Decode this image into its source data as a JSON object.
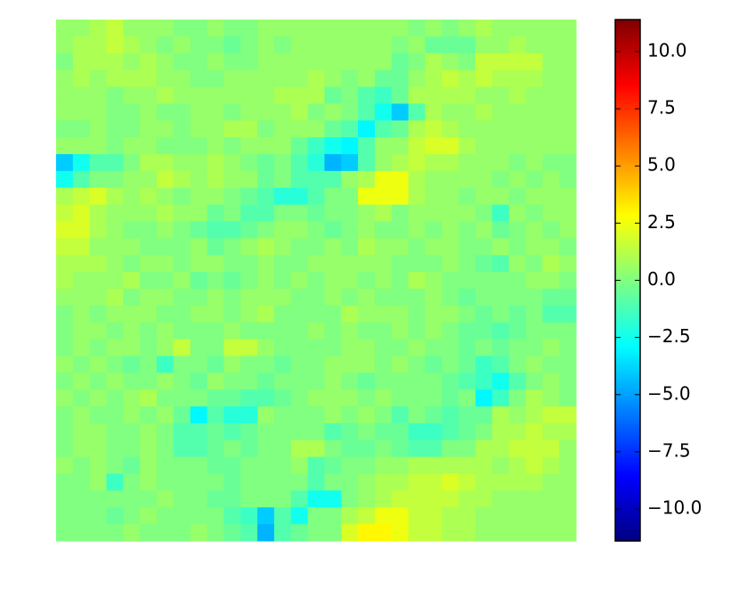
{
  "chart_data": {
    "type": "heatmap",
    "colormap": "jet",
    "zlim": [
      -11.4,
      11.4
    ],
    "zticks": [
      {
        "value": -10,
        "label": "−10.0"
      },
      {
        "value": -7.5,
        "label": "−7.5"
      },
      {
        "value": -5,
        "label": "−5.0"
      },
      {
        "value": -2.5,
        "label": "−2.5"
      },
      {
        "value": 0,
        "label": "0.0"
      },
      {
        "value": 2.5,
        "label": "2.5"
      },
      {
        "value": 5,
        "label": "5.0"
      },
      {
        "value": 7.5,
        "label": "7.5"
      },
      {
        "value": 10,
        "label": "10.0"
      }
    ],
    "z": [
      [
        0.5,
        0.5,
        1,
        1.5,
        0.5,
        0.5,
        0.5,
        0,
        0,
        0.5,
        0,
        0,
        0.5,
        0.5,
        0.5,
        0.5,
        0.5,
        0.5,
        0.5,
        0.5,
        0.5,
        0,
        0.5,
        0,
        0.5,
        1,
        0.5,
        0.5,
        0.5,
        0.5,
        0.5
      ],
      [
        0.5,
        1,
        1,
        1.5,
        1,
        0.5,
        0,
        0.5,
        0,
        0,
        -0.5,
        0,
        0.5,
        0,
        0.5,
        0.5,
        0.5,
        0.5,
        0.5,
        0.5,
        0,
        0.5,
        -0.5,
        -0.5,
        -0.5,
        0.5,
        0.5,
        1,
        0.5,
        0.5,
        0.5
      ],
      [
        0,
        1,
        1,
        1,
        0.5,
        1,
        0.5,
        0,
        0,
        0.5,
        0,
        0,
        0.5,
        0.5,
        0.5,
        0.5,
        0.5,
        0.5,
        0.5,
        0.5,
        -0.5,
        0,
        1,
        0.5,
        0,
        1.5,
        1.5,
        1.5,
        1.5,
        0.5,
        0.5
      ],
      [
        0.5,
        1,
        0.5,
        1,
        1,
        1,
        0.5,
        0.5,
        0,
        0,
        0.5,
        0.5,
        0.5,
        0.5,
        0.5,
        1,
        0.5,
        0,
        0.5,
        -0.5,
        -0.5,
        0.5,
        1,
        1.5,
        1,
        1.5,
        1,
        1,
        1,
        0.5,
        0.5
      ],
      [
        0.5,
        0.5,
        0.5,
        0,
        0.5,
        0.5,
        1,
        0.5,
        0.5,
        0.5,
        0.5,
        0.5,
        0.5,
        1,
        1,
        1,
        -0.5,
        0,
        -1,
        -1.5,
        -0.5,
        1,
        1,
        1,
        1,
        0.5,
        0.5,
        1,
        0.5,
        0.5,
        0.5
      ],
      [
        0.5,
        0.5,
        0.5,
        0,
        0,
        0.5,
        0,
        0,
        0.5,
        0.5,
        0,
        0.5,
        0.5,
        0.5,
        1,
        0,
        0.5,
        0,
        -1,
        -2.5,
        -4,
        -1,
        1,
        0.5,
        0.5,
        1,
        0.5,
        0.5,
        0.5,
        0.5,
        0.5
      ],
      [
        0,
        0,
        0.5,
        0,
        0,
        0.5,
        0.5,
        0,
        0.5,
        0.5,
        1,
        1,
        0,
        0.5,
        0.5,
        0.5,
        -0.5,
        -1,
        -3,
        -1,
        -0.5,
        1,
        1.5,
        1,
        0.5,
        0.5,
        0.5,
        0.5,
        0.5,
        0.5,
        0.5
      ],
      [
        0.5,
        0.5,
        0.5,
        0,
        0.5,
        0.5,
        0,
        0,
        0,
        0.5,
        0,
        0.5,
        0.5,
        0.5,
        -0.5,
        -1.5,
        -2.5,
        -3,
        -1,
        0.5,
        0.5,
        1.5,
        2,
        2,
        1,
        0.5,
        0.5,
        0.5,
        0.5,
        0.5,
        0.5
      ],
      [
        -4,
        -2.5,
        -1,
        -1,
        0,
        1,
        1,
        0.5,
        0.5,
        1,
        0.5,
        0,
        -0.5,
        0,
        -1,
        -2,
        -4.5,
        -4,
        -1,
        0.5,
        1,
        1.5,
        1,
        1,
        0.5,
        0.5,
        0.5,
        0,
        0.5,
        0,
        0
      ],
      [
        -2.5,
        -1,
        0,
        0,
        0.5,
        0.5,
        1.5,
        1,
        0.5,
        1,
        0.5,
        0.5,
        -0.5,
        0,
        -1,
        -1,
        -1,
        0.5,
        1,
        2.5,
        2.5,
        1,
        0.5,
        0.5,
        0.5,
        0.5,
        0,
        0.5,
        0,
        0.5,
        0
      ],
      [
        1,
        1.5,
        2,
        1,
        0.5,
        1,
        0.5,
        0,
        0.5,
        0.5,
        0,
        -0.5,
        -1,
        -2,
        -2,
        -1,
        0,
        0,
        2.5,
        2.5,
        2.5,
        1,
        0.5,
        0.5,
        0,
        0.5,
        0.5,
        0,
        0.5,
        0.5,
        0.5
      ],
      [
        1.5,
        2,
        1,
        0.5,
        0.5,
        0.5,
        1,
        0.5,
        0.5,
        -0.5,
        0,
        -1,
        -1,
        0,
        0,
        -0.5,
        0,
        0,
        0.5,
        1,
        0,
        0.5,
        0.5,
        0.5,
        0.5,
        0,
        -1.5,
        0.5,
        0,
        0.5,
        0.5
      ],
      [
        2,
        2,
        1,
        0.5,
        0,
        0,
        0.5,
        0,
        -0.5,
        -1,
        -1,
        -0.5,
        0,
        0.5,
        0.5,
        0,
        -0.5,
        0,
        0.5,
        0,
        0,
        0.5,
        0,
        0.5,
        0,
        0.5,
        -0.5,
        0,
        0.5,
        0,
        0.5
      ],
      [
        1.5,
        1.5,
        0.5,
        0.5,
        0.5,
        0,
        0,
        0,
        0.5,
        -0.5,
        0,
        0.5,
        1,
        0.5,
        0,
        0,
        0.5,
        0,
        1,
        0.5,
        0.5,
        0,
        0.5,
        0.5,
        0,
        0,
        0.5,
        0,
        0.5,
        0.5,
        0
      ],
      [
        1,
        1,
        1,
        0.5,
        0,
        0.5,
        0.5,
        0,
        0.5,
        0.5,
        0,
        0,
        0.5,
        0,
        0,
        0.5,
        0.5,
        0.5,
        0.5,
        0.5,
        0,
        0,
        0,
        0.5,
        0,
        -0.5,
        -1,
        0.5,
        0,
        1,
        0.5
      ],
      [
        1,
        0.5,
        0.5,
        0.5,
        1,
        0,
        0,
        0.5,
        -0.5,
        0,
        -0.5,
        0,
        0.5,
        0,
        0.5,
        0,
        0.5,
        0.5,
        0,
        0.5,
        0,
        1,
        0.5,
        0,
        0,
        0,
        0,
        0,
        0.5,
        0.5,
        0
      ],
      [
        0.5,
        0.5,
        0.5,
        1,
        0,
        0.5,
        0.5,
        0,
        0,
        0.5,
        0,
        0.5,
        0.5,
        0.5,
        0,
        0,
        0.5,
        0,
        0.5,
        0,
        0,
        0,
        0.5,
        0,
        -0.5,
        0,
        0,
        0,
        0,
        -0.5,
        -0.5
      ],
      [
        0,
        0.5,
        0,
        0.5,
        0.5,
        0.5,
        0,
        0,
        0.5,
        0.5,
        0,
        0.5,
        1,
        0,
        0,
        0,
        0,
        1,
        0.5,
        0.5,
        0.5,
        0,
        0.5,
        0.5,
        0,
        -0.5,
        0,
        -0.5,
        0,
        -1,
        -1
      ],
      [
        0,
        0.5,
        0.5,
        0,
        0.5,
        0,
        0.5,
        0,
        0,
        0,
        0.5,
        0,
        0,
        0,
        0,
        0.5,
        0,
        0.5,
        0,
        0,
        0.5,
        0,
        0.5,
        0,
        -0.5,
        -0.5,
        -1,
        -0.5,
        0,
        0,
        0
      ],
      [
        0,
        0.5,
        0,
        0.5,
        0.5,
        0,
        0.5,
        1.5,
        0,
        0,
        1.5,
        1.5,
        0.5,
        0,
        0,
        0,
        0,
        0.5,
        0.5,
        0,
        0,
        0.5,
        0,
        0,
        -0.5,
        0,
        -0.5,
        0,
        0,
        0.5,
        0
      ],
      [
        0.5,
        0,
        0.5,
        0,
        -0.5,
        0,
        -1.5,
        0,
        0,
        -0.5,
        0.5,
        0,
        0,
        -0.5,
        0,
        0,
        0.5,
        0.5,
        0.5,
        0,
        0.5,
        0,
        -0.5,
        0,
        -0.5,
        -1.5,
        -1,
        0,
        0.5,
        0,
        0
      ],
      [
        0,
        0.5,
        0,
        0.5,
        0,
        0,
        0.5,
        0,
        -0.5,
        0.5,
        0,
        0,
        -0.5,
        0,
        0,
        0,
        0.5,
        0,
        -0.5,
        0,
        0,
        0,
        0,
        -0.5,
        -1,
        -1.5,
        -2.5,
        -1,
        0,
        0.5,
        0
      ],
      [
        0.5,
        0,
        0.5,
        0,
        0.5,
        1,
        0,
        0,
        0,
        -0.5,
        -0.5,
        -1,
        -1,
        -0.5,
        0,
        0.5,
        0.5,
        0.5,
        0,
        0.5,
        0,
        0,
        0,
        -0.5,
        0,
        -3,
        -1.5,
        0,
        1,
        0.5,
        0
      ],
      [
        0,
        0.5,
        0,
        0,
        0.5,
        0,
        0.5,
        -0.5,
        -3,
        -1,
        -2,
        -2,
        0.5,
        0,
        0,
        0,
        0.5,
        0,
        0.5,
        0,
        -1,
        0,
        -0.5,
        -1,
        -0.5,
        -0.5,
        1,
        0.5,
        1,
        1.5,
        1.5
      ],
      [
        0,
        0.5,
        0.5,
        0,
        0,
        0.5,
        0,
        -1,
        -1,
        -0.5,
        -1,
        -0.5,
        0,
        0,
        0,
        0,
        -1,
        -0.5,
        0,
        -0.5,
        -0.5,
        -1.5,
        -1.5,
        -1,
        -0.5,
        0,
        1,
        1,
        1.5,
        1,
        1
      ],
      [
        0,
        0.5,
        0.5,
        0,
        0,
        0.5,
        0,
        -1,
        -1,
        -0.5,
        0,
        -0.5,
        0,
        0,
        1,
        1,
        0,
        -0.5,
        -0.5,
        0,
        -0.5,
        -1,
        -1,
        0,
        0,
        1,
        1,
        1.5,
        1.5,
        1.5,
        0.5
      ],
      [
        0.5,
        0,
        0.5,
        0,
        -0.5,
        0.5,
        0,
        0,
        0,
        -0.5,
        -0.5,
        0,
        0,
        0,
        0.5,
        -1,
        -0.5,
        0,
        0,
        0.5,
        0.5,
        1,
        1,
        1,
        1,
        1,
        0.5,
        1,
        1.5,
        1,
        0.5
      ],
      [
        0,
        0,
        0.5,
        -1.5,
        0,
        0.5,
        0,
        0,
        0,
        0,
        -0.5,
        0,
        0,
        0,
        0,
        -1,
        0,
        0,
        0.5,
        1,
        1,
        1.5,
        1.5,
        2,
        1.5,
        1,
        1,
        1,
        1,
        0.5,
        0.5
      ],
      [
        0,
        0,
        0,
        0,
        0,
        0,
        0.5,
        0,
        0,
        -0.5,
        -0.5,
        0,
        0,
        0,
        -1,
        -2.5,
        -2.5,
        0,
        0.5,
        1,
        1.5,
        1.5,
        1.5,
        1.5,
        1,
        1,
        0.5,
        0.5,
        0.5,
        0.5,
        0.5
      ],
      [
        0,
        0,
        0,
        -0.5,
        0,
        0.5,
        0,
        0,
        0,
        0,
        -1,
        -1.5,
        -4,
        -1,
        -2.5,
        0,
        0,
        1,
        1.5,
        2.5,
        2.5,
        1.5,
        1.5,
        1,
        1,
        0.5,
        0.5,
        0.5,
        0.5,
        0.5,
        0.5
      ],
      [
        0,
        0,
        0,
        0,
        0.5,
        0,
        0,
        0,
        0.5,
        0,
        -0.5,
        -1,
        -4.5,
        -1,
        -0.5,
        0,
        0,
        2,
        3,
        3,
        2.5,
        1.5,
        1.5,
        1,
        1,
        0.5,
        0.5,
        0.5,
        0.5,
        0.5,
        0.5
      ]
    ]
  }
}
